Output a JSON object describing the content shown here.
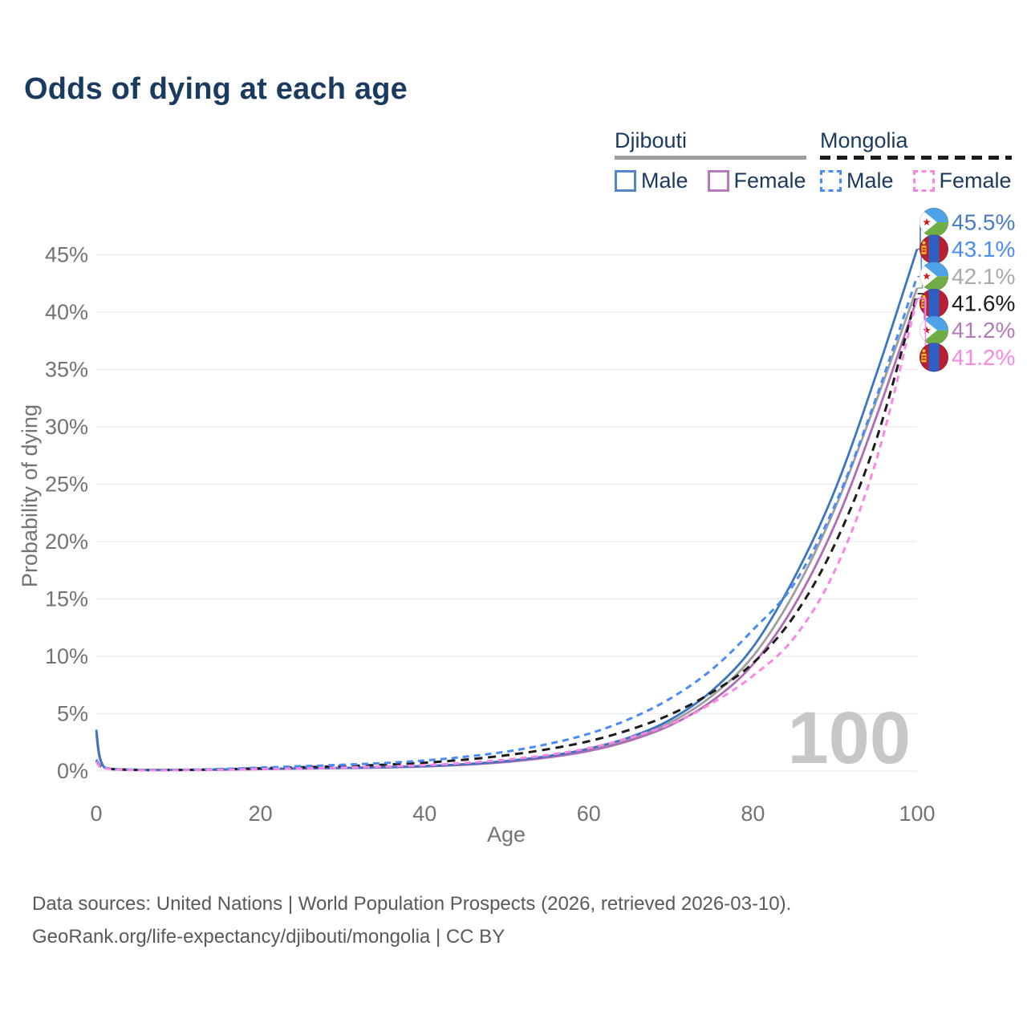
{
  "title": "Odds of dying at each age",
  "watermark": "100",
  "legend": {
    "groups": [
      {
        "title": "Djibouti",
        "line_style": "solid",
        "underline_color": "#9e9e9e",
        "items": [
          {
            "label": "Male",
            "color": "#5585c7",
            "dashed": false
          },
          {
            "label": "Female",
            "color": "#b779be",
            "dashed": false
          }
        ]
      },
      {
        "title": "Mongolia",
        "line_style": "dashed",
        "underline_color": "#1c1c1c",
        "items": [
          {
            "label": "Male",
            "color": "#4a8cf5",
            "dashed": true
          },
          {
            "label": "Female",
            "color": "#fb87e4",
            "dashed": true
          }
        ]
      }
    ]
  },
  "chart_data": {
    "type": "line",
    "title": "Odds of dying at each age",
    "xlabel": "Age",
    "ylabel": "Probability of dying",
    "xlim": [
      0,
      100
    ],
    "ylim": [
      0,
      47
    ],
    "x_ticks": [
      0,
      20,
      40,
      60,
      80,
      100
    ],
    "y_tick_values": [
      0,
      5,
      10,
      15,
      20,
      25,
      30,
      35,
      40,
      45
    ],
    "grid": true,
    "legend_position": "top-right",
    "ages": [
      0,
      1,
      5,
      10,
      15,
      20,
      25,
      30,
      35,
      40,
      45,
      50,
      55,
      60,
      65,
      70,
      75,
      80,
      85,
      90,
      95,
      100
    ],
    "series": [
      {
        "name": "Djibouti Male",
        "flag": "djibouti",
        "dashed": false,
        "color": "#3d74bf",
        "label_color": "#4a7cc0",
        "end_label": "45.5%",
        "values": [
          3.6,
          0.33,
          0.12,
          0.1,
          0.14,
          0.2,
          0.24,
          0.28,
          0.34,
          0.44,
          0.6,
          0.88,
          1.3,
          1.95,
          2.95,
          4.5,
          7.0,
          10.8,
          16.8,
          24.5,
          34.5,
          45.5
        ]
      },
      {
        "name": "Mongolia Male",
        "flag": "mongolia",
        "dashed": true,
        "color": "#4a8cf5",
        "label_color": "#4a8cf5",
        "end_label": "43.1%",
        "values": [
          1.0,
          0.3,
          0.11,
          0.11,
          0.18,
          0.3,
          0.42,
          0.55,
          0.7,
          0.92,
          1.25,
          1.7,
          2.35,
          3.25,
          4.55,
          6.35,
          8.85,
          12.3,
          16.3,
          23.2,
          32.5,
          43.1
        ]
      },
      {
        "name": "Djibouti",
        "flag": "djibouti",
        "dashed": false,
        "color": "#9e9e9e",
        "label_color": "#a9a9a9",
        "end_label": "42.1%",
        "values": [
          3.4,
          0.31,
          0.11,
          0.1,
          0.13,
          0.19,
          0.23,
          0.27,
          0.33,
          0.42,
          0.58,
          0.84,
          1.24,
          1.85,
          2.8,
          4.25,
          6.55,
          10.0,
          15.5,
          22.9,
          32.2,
          42.1
        ]
      },
      {
        "name": "Mongolia",
        "flag": "mongolia",
        "dashed": true,
        "color": "#1c1c1c",
        "label_color": "#1c1c1c",
        "end_label": "41.6%",
        "values": [
          0.92,
          0.27,
          0.1,
          0.1,
          0.15,
          0.24,
          0.33,
          0.43,
          0.55,
          0.73,
          1.0,
          1.38,
          1.9,
          2.6,
          3.6,
          4.95,
          6.85,
          9.4,
          13.5,
          19.8,
          28.8,
          41.6
        ]
      },
      {
        "name": "Djibouti Female",
        "flag": "djibouti",
        "dashed": false,
        "color": "#ad6cb4",
        "label_color": "#b279bb",
        "end_label": "41.2%",
        "values": [
          3.2,
          0.29,
          0.1,
          0.09,
          0.12,
          0.17,
          0.21,
          0.25,
          0.31,
          0.4,
          0.55,
          0.8,
          1.18,
          1.75,
          2.65,
          4.0,
          6.1,
          9.3,
          14.4,
          21.5,
          30.8,
          41.2
        ]
      },
      {
        "name": "Mongolia Female",
        "flag": "mongolia",
        "dashed": true,
        "color": "#fb87e4",
        "label_color": "#fb87e4",
        "end_label": "41.2%",
        "values": [
          0.78,
          0.24,
          0.08,
          0.08,
          0.11,
          0.17,
          0.23,
          0.3,
          0.39,
          0.52,
          0.71,
          1.0,
          1.4,
          2.0,
          2.9,
          4.1,
          5.9,
          8.3,
          11.6,
          17.5,
          27.0,
          41.2
        ]
      }
    ]
  },
  "footer": {
    "line1": "Data sources: United Nations | World Population Prospects (2026, retrieved 2026-03-10).",
    "line2": "GeoRank.org/life-expectancy/djibouti/mongolia | CC BY"
  }
}
